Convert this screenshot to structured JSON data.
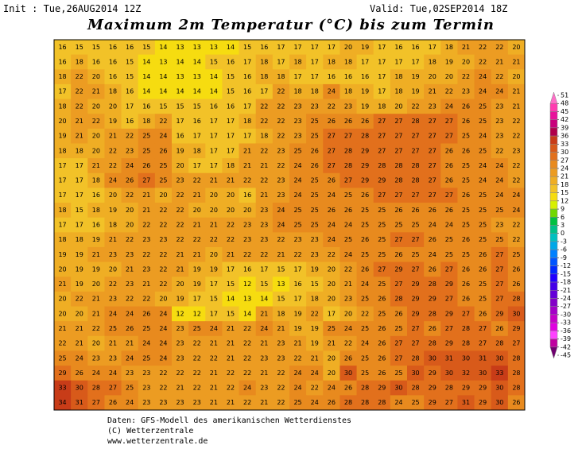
{
  "header": {
    "init": "Init : Tue,26AUG2014 12Z",
    "valid": "Valid: Tue,02SEP2014 18Z",
    "title": "Maximum 2m Temperatur (°C) bis zum Termin"
  },
  "map": {
    "rows": [
      [
        16,
        15,
        15,
        16,
        16,
        15,
        14,
        13,
        13,
        13,
        14,
        15,
        16,
        17,
        17,
        17,
        17,
        20,
        19,
        17,
        16,
        16,
        17,
        18,
        21,
        22,
        22,
        20
      ],
      [
        16,
        18,
        16,
        16,
        15,
        14,
        13,
        14,
        14,
        15,
        16,
        17,
        18,
        17,
        18,
        17,
        18,
        18,
        17,
        17,
        17,
        17,
        18,
        19,
        20,
        22,
        21,
        21
      ],
      [
        18,
        22,
        20,
        16,
        15,
        14,
        14,
        13,
        13,
        14,
        15,
        16,
        18,
        18,
        17,
        17,
        16,
        16,
        16,
        17,
        18,
        19,
        20,
        20,
        22,
        24,
        22,
        20
      ],
      [
        17,
        22,
        21,
        18,
        16,
        14,
        14,
        14,
        14,
        14,
        15,
        16,
        17,
        22,
        18,
        18,
        24,
        18,
        19,
        17,
        18,
        19,
        21,
        22,
        23,
        24,
        24,
        21
      ],
      [
        18,
        22,
        20,
        20,
        17,
        16,
        15,
        15,
        15,
        16,
        16,
        17,
        22,
        22,
        23,
        23,
        22,
        23,
        19,
        18,
        20,
        22,
        23,
        24,
        26,
        25,
        23,
        21
      ],
      [
        20,
        21,
        22,
        19,
        16,
        18,
        22,
        17,
        16,
        17,
        17,
        18,
        22,
        22,
        23,
        25,
        26,
        26,
        26,
        27,
        27,
        28,
        27,
        27,
        26,
        25,
        23,
        22
      ],
      [
        19,
        21,
        20,
        21,
        22,
        25,
        24,
        16,
        17,
        17,
        17,
        17,
        18,
        22,
        23,
        25,
        27,
        27,
        28,
        27,
        27,
        27,
        27,
        27,
        25,
        24,
        23,
        22
      ],
      [
        18,
        18,
        20,
        22,
        23,
        25,
        26,
        19,
        18,
        17,
        17,
        21,
        22,
        23,
        25,
        26,
        27,
        28,
        29,
        27,
        27,
        27,
        27,
        26,
        26,
        25,
        22,
        23
      ],
      [
        17,
        17,
        21,
        22,
        24,
        26,
        25,
        20,
        17,
        17,
        18,
        21,
        21,
        22,
        24,
        26,
        27,
        28,
        29,
        28,
        28,
        28,
        27,
        26,
        25,
        24,
        24,
        22
      ],
      [
        17,
        17,
        18,
        24,
        26,
        27,
        25,
        23,
        22,
        21,
        21,
        22,
        22,
        23,
        24,
        25,
        26,
        27,
        29,
        29,
        28,
        28,
        27,
        26,
        25,
        24,
        24,
        22
      ],
      [
        17,
        17,
        16,
        20,
        22,
        21,
        20,
        22,
        21,
        20,
        20,
        16,
        21,
        23,
        24,
        25,
        24,
        25,
        26,
        27,
        27,
        27,
        27,
        27,
        26,
        25,
        24,
        24
      ],
      [
        18,
        15,
        18,
        19,
        20,
        21,
        22,
        22,
        20,
        20,
        20,
        20,
        23,
        24,
        25,
        25,
        26,
        26,
        25,
        25,
        26,
        26,
        26,
        26,
        25,
        25,
        25,
        24
      ],
      [
        17,
        17,
        16,
        18,
        20,
        22,
        22,
        22,
        21,
        21,
        22,
        23,
        23,
        24,
        25,
        25,
        24,
        24,
        25,
        25,
        25,
        25,
        24,
        24,
        25,
        25,
        23,
        22
      ],
      [
        18,
        18,
        19,
        21,
        22,
        23,
        23,
        22,
        22,
        22,
        22,
        23,
        23,
        22,
        23,
        23,
        24,
        25,
        26,
        25,
        27,
        27,
        26,
        25,
        26,
        25,
        25,
        22
      ],
      [
        19,
        19,
        21,
        23,
        23,
        22,
        22,
        21,
        21,
        20,
        21,
        22,
        22,
        21,
        22,
        23,
        22,
        24,
        25,
        25,
        26,
        25,
        24,
        25,
        25,
        26,
        27,
        25
      ],
      [
        20,
        19,
        19,
        20,
        21,
        23,
        22,
        21,
        19,
        19,
        17,
        16,
        17,
        15,
        17,
        19,
        20,
        22,
        26,
        27,
        29,
        27,
        26,
        27,
        26,
        26,
        27,
        26
      ],
      [
        21,
        19,
        20,
        22,
        23,
        21,
        22,
        20,
        19,
        17,
        15,
        12,
        15,
        13,
        16,
        15,
        20,
        21,
        24,
        25,
        27,
        29,
        28,
        29,
        26,
        25,
        27,
        26
      ],
      [
        20,
        22,
        21,
        23,
        22,
        22,
        20,
        19,
        17,
        15,
        14,
        13,
        14,
        15,
        17,
        18,
        20,
        23,
        25,
        26,
        28,
        29,
        29,
        27,
        26,
        25,
        27,
        28
      ],
      [
        20,
        20,
        21,
        24,
        24,
        26,
        24,
        12,
        12,
        17,
        15,
        14,
        21,
        18,
        19,
        22,
        17,
        20,
        22,
        25,
        26,
        29,
        28,
        29,
        27,
        26,
        29,
        30
      ],
      [
        21,
        21,
        22,
        25,
        26,
        25,
        24,
        23,
        25,
        24,
        21,
        22,
        24,
        21,
        19,
        19,
        25,
        24,
        25,
        26,
        25,
        27,
        26,
        27,
        28,
        27,
        26,
        29
      ],
      [
        22,
        21,
        20,
        21,
        21,
        24,
        24,
        23,
        22,
        21,
        21,
        22,
        21,
        23,
        21,
        19,
        21,
        22,
        24,
        26,
        27,
        27,
        28,
        29,
        28,
        27,
        28,
        27
      ],
      [
        25,
        24,
        23,
        23,
        24,
        25,
        24,
        23,
        22,
        22,
        21,
        22,
        23,
        23,
        22,
        21,
        20,
        26,
        25,
        26,
        27,
        28,
        30,
        31,
        30,
        31,
        30,
        28
      ],
      [
        29,
        26,
        24,
        24,
        23,
        23,
        22,
        22,
        22,
        21,
        22,
        22,
        21,
        22,
        24,
        24,
        20,
        30,
        25,
        26,
        25,
        30,
        29,
        30,
        32,
        30,
        33,
        28
      ],
      [
        33,
        30,
        28,
        27,
        25,
        23,
        22,
        21,
        22,
        21,
        22,
        24,
        23,
        22,
        24,
        22,
        24,
        26,
        28,
        29,
        30,
        28,
        29,
        28,
        29,
        29,
        30,
        28
      ],
      [
        34,
        31,
        27,
        26,
        24,
        23,
        23,
        23,
        23,
        21,
        21,
        22,
        21,
        22,
        25,
        24,
        26,
        28,
        28,
        28,
        24,
        25,
        29,
        27,
        31,
        29,
        30,
        26
      ]
    ]
  },
  "colorbar": {
    "labels": [
      51,
      48,
      45,
      42,
      39,
      36,
      33,
      30,
      27,
      24,
      21,
      18,
      15,
      12,
      9,
      6,
      3,
      0,
      -3,
      -6,
      -9,
      -12,
      -15,
      -18,
      -21,
      -24,
      -27,
      -30,
      -33,
      -36,
      -39,
      -42,
      -45
    ],
    "colors": [
      "#ff6ec8",
      "#ff3cb0",
      "#e8149c",
      "#c8007c",
      "#b0004a",
      "#c83c18",
      "#d85a1a",
      "#e2701c",
      "#e88a1e",
      "#ec9c22",
      "#efae24",
      "#f2c228",
      "#f6dc10",
      "#d8f000",
      "#70d800",
      "#00c040",
      "#00c088",
      "#00c0c0",
      "#00a8e8",
      "#0080ff",
      "#0054ff",
      "#0028ff",
      "#2000ff",
      "#4400e8",
      "#6400d8",
      "#8400c8",
      "#a400c8",
      "#c400c8",
      "#e000e0",
      "#ff40ff",
      "#c000a0",
      "#700070"
    ]
  },
  "footer": {
    "lines": [
      "Daten: GFS-Modell des amerikanischen Wetterdienstes",
      "(C) Wetterzentrale",
      "www.wetterzentrale.de"
    ]
  }
}
